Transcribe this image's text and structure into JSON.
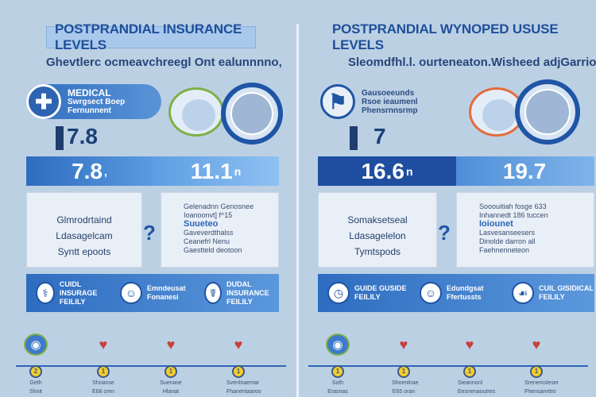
{
  "left": {
    "title": "POSTPRANDIAL INSURANCE LEVELS",
    "subtitle": "Ghevtlerc ocmeavchreegl Ont ealunnnno,",
    "chip": {
      "line1": "MEDICAL",
      "line2": "Swrgsect Boep",
      "line3": "Fernunnent"
    },
    "mini_value": "7.8",
    "band": {
      "value_a": "7.8",
      "value_a_unit": ",",
      "value_b": "11.1",
      "value_b_unit": "n"
    },
    "card_lines": [
      "Glmrodrtaind",
      "Ldasagelcam",
      "Syntt epoots"
    ],
    "card_list": [
      "Gelenadnn Genosnee",
      "Ioanoonvt] f^15",
      "Suueteo",
      "Gaveverdthalss",
      "Ceanefrl Nenu",
      "Gaestteld deotoon"
    ],
    "strip": [
      {
        "icon": "medicine-bottle-icon",
        "line1": "CUIDL INSURAGE",
        "line2": "FEILILY"
      },
      {
        "icon": "person-icon",
        "line1": "Emndeusat",
        "line2": "Fonanesi"
      },
      {
        "icon": "doctor-icon",
        "line1": "DUDAL INSURANCE",
        "line2": "FEILILY"
      }
    ],
    "timeline": [
      {
        "icon": "globe-icon",
        "dot": "2",
        "cap1": "Geth",
        "cap2": "Shnit"
      },
      {
        "icon": "heart-icon",
        "dot": "1",
        "cap1": "Shoanse",
        "cap2": "E68 cren"
      },
      {
        "icon": "heart-icon",
        "dot": "1",
        "cap1": "Suenase",
        "cap2": "Hlanat"
      },
      {
        "icon": "heart-icon",
        "dot": "1",
        "cap1": "Svenlnaemar",
        "cap2": "Fhanentaaroo"
      }
    ]
  },
  "right": {
    "title": "POSTPRANDIAL WYNOPED USUSE LEVELS",
    "subtitle": "Sleomdfhl.l. ourteneaton.Wisheed adjGarrion?",
    "chip": {
      "line1": "Gausoeeunds",
      "line2": "Rsoe ieaumenl",
      "line3": "Phensrnnsrmp"
    },
    "mini_value": "7",
    "band": {
      "value_a": "16.6",
      "value_a_unit": "n",
      "value_b": "19.7",
      "value_b_unit": ""
    },
    "card_lines": [
      "Somaksetseal",
      "Ldasagelelon",
      "Tymtspods"
    ],
    "card_list": [
      "Sooouitiah fosge 633",
      "Inhannedt 186 tuccen",
      "Ioiounet",
      "Lasvesanseesers",
      "Dinolde darron all",
      "Faehnenneteon"
    ],
    "strip": [
      {
        "icon": "clock-icon",
        "line1": "GUIDE GUSIDE",
        "line2": "FEILILY"
      },
      {
        "icon": "person-icon",
        "line1": "Edundgsat",
        "line2": "Ffertussts"
      },
      {
        "icon": "hands-icon",
        "line1": "CUIL GISIDICAL",
        "line2": "FEILILY"
      }
    ],
    "timeline": [
      {
        "icon": "globe-icon",
        "dot": "1",
        "cap1": "Soth",
        "cap2": "Erasnas"
      },
      {
        "icon": "heart-icon",
        "dot": "1",
        "cap1": "Shoenlnae",
        "cap2": "E65 oran"
      },
      {
        "icon": "heart-icon",
        "dot": "1",
        "cap1": "Sieannonl",
        "cap2": "Eesnenaoutres"
      },
      {
        "icon": "heart-icon",
        "dot": "1",
        "cap1": "Srenemsleser",
        "cap2": "Fhensanrttro"
      }
    ]
  }
}
